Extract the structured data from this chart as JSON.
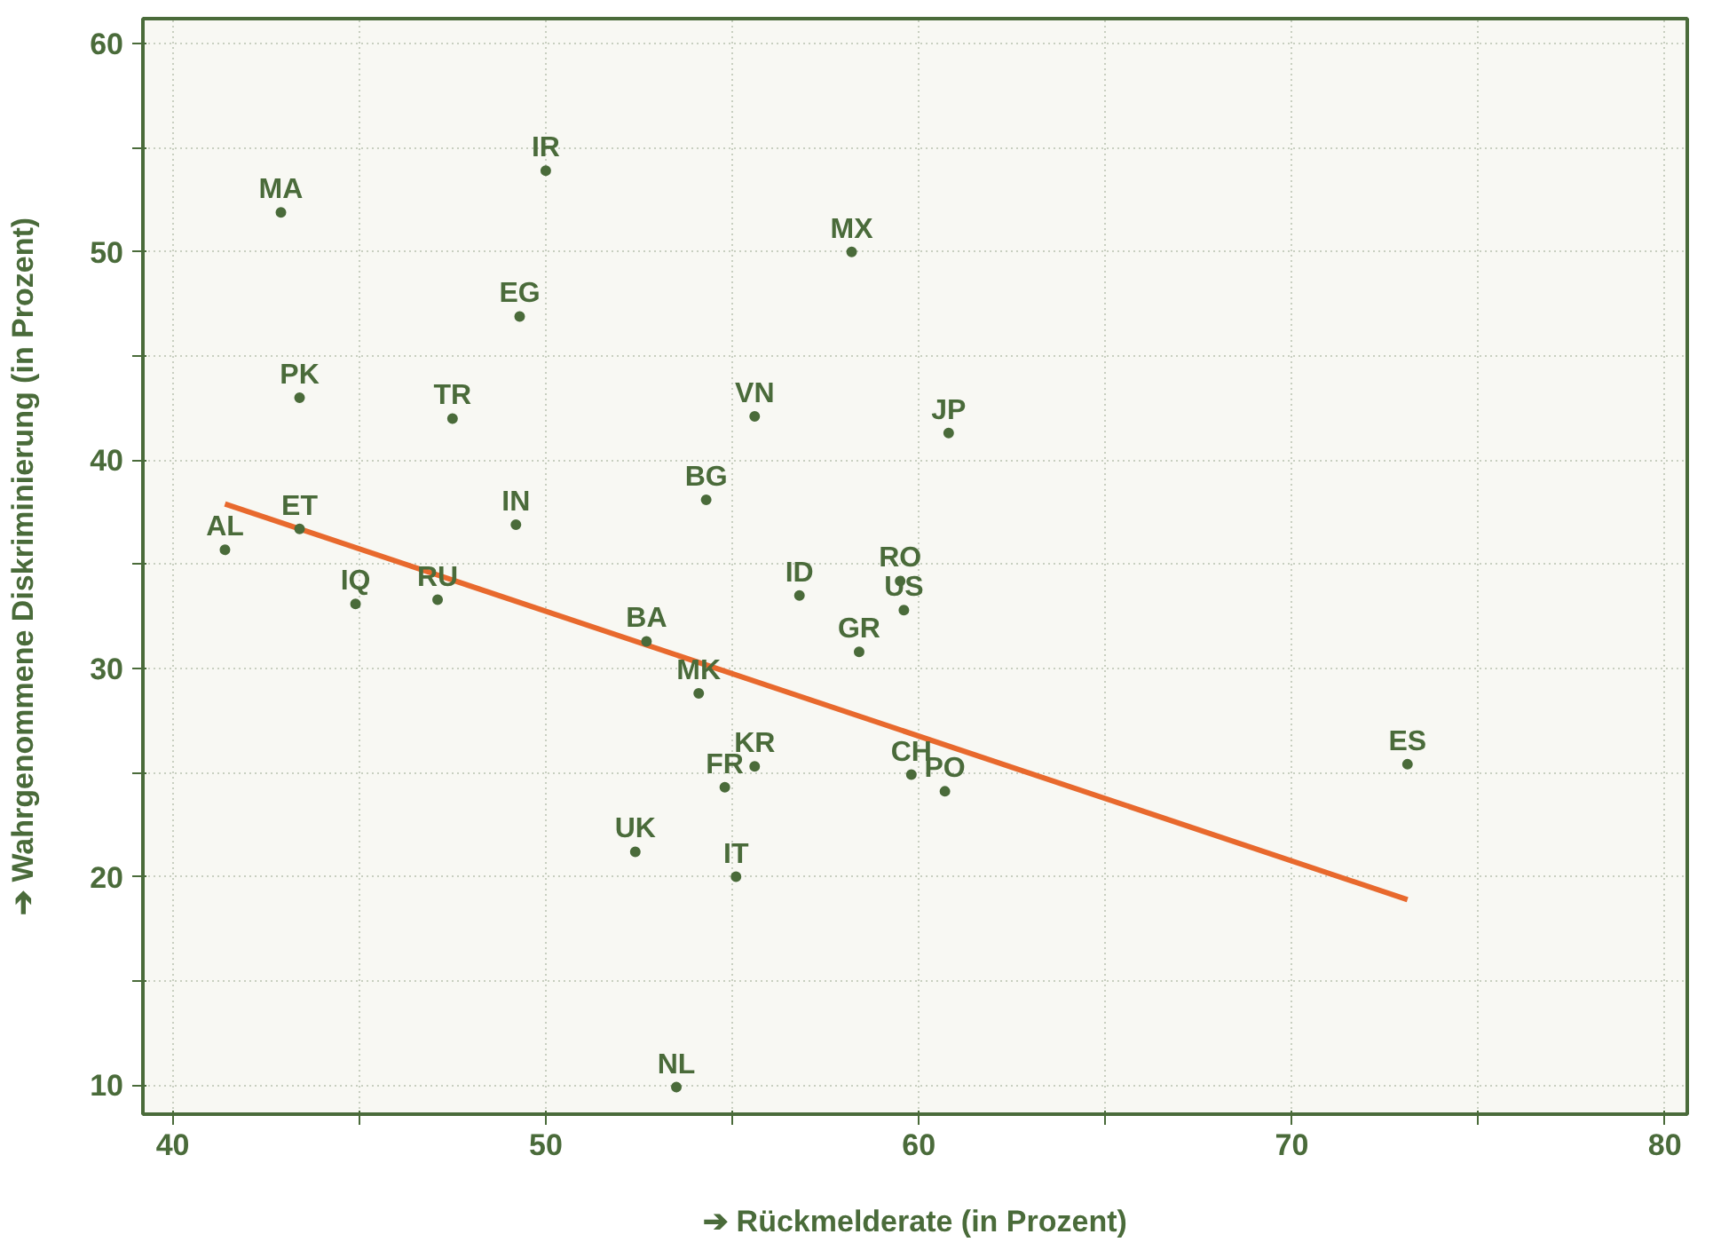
{
  "chart_data": {
    "type": "scatter",
    "xlabel": "➔ Rückmelderate (in Prozent)",
    "ylabel": "➔ Wahrgenommene Diskriminierung (in Prozent)",
    "xlim": [
      39.2,
      80.6
    ],
    "ylim": [
      8.6,
      61.2
    ],
    "xticks": [
      40,
      {
        "value": 45,
        "label": null
      },
      50,
      {
        "value": 55,
        "label": null
      },
      60,
      {
        "value": 65,
        "label": null
      },
      70,
      {
        "value": 75,
        "label": null
      },
      80
    ],
    "yticks": [
      10,
      {
        "value": 15,
        "label": null
      },
      20,
      {
        "value": 25,
        "label": null
      },
      30,
      {
        "value": 35,
        "label": null
      },
      40,
      {
        "value": 45,
        "label": null
      },
      50,
      {
        "value": 55,
        "label": null
      },
      60
    ],
    "grid": true,
    "series": [
      {
        "color": "#4a6b3a",
        "marker": "circle",
        "x": [
          50,
          42.9,
          58.2,
          49.3,
          43.4,
          47.5,
          55.6,
          60.8,
          54.3,
          49.2,
          43.4,
          41.4,
          56.8,
          59.5,
          59.6,
          44.9,
          47.1,
          52.7,
          58.4,
          54.1,
          55.6,
          54.8,
          59.8,
          60.7,
          73.1,
          52.4,
          55.1,
          53.5
        ],
        "values": [
          53.9,
          51.9,
          50.0,
          46.9,
          43.0,
          42.0,
          42.1,
          41.3,
          38.1,
          36.9,
          36.7,
          35.7,
          33.5,
          34.2,
          32.8,
          33.1,
          33.3,
          31.3,
          30.8,
          28.8,
          25.3,
          24.3,
          24.9,
          24.1,
          25.4,
          21.2,
          20.0,
          9.9
        ],
        "value_labels": [
          "IR",
          "MA",
          "MX",
          "EG",
          "PK",
          "TR",
          "VN",
          "JP",
          "BG",
          "IN",
          "ET",
          "AL",
          "ID",
          "RO",
          "US",
          "IQ",
          "RU",
          "BA",
          "GR",
          "MK",
          "KR",
          "FR",
          "CH",
          "PO",
          "ES",
          "UK",
          "IT",
          "NL"
        ]
      },
      {
        "type": "line",
        "color": "#e8692d",
        "x": [
          41.4,
          73.1
        ],
        "values": [
          37.9,
          18.9
        ]
      }
    ]
  }
}
